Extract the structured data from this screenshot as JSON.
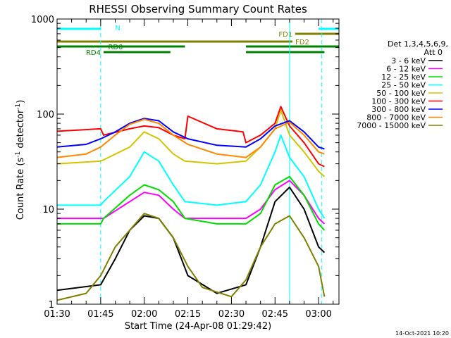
{
  "chart_data": {
    "type": "line",
    "title": "RHESSI Observing Summary Count Rates",
    "xlabel": "Start Time (24-Apr-08 01:29:42)",
    "ylabel_main": "Count Rate (s",
    "ylabel_sup1": "-1",
    "ylabel_mid": " detector",
    "ylabel_sup2": "-1",
    "ylabel_end": ")",
    "footer": "14-Oct-2021 10:20",
    "y_scale": "log",
    "ylim": [
      1,
      1000
    ],
    "xlim": [
      "01:30",
      "03:07"
    ],
    "x_ticks": [
      "01:30",
      "01:45",
      "02:00",
      "02:15",
      "02:30",
      "02:45",
      "03:00"
    ],
    "y_ticks": [
      "1",
      "10",
      "100",
      "1000"
    ],
    "legend": {
      "placement": "right",
      "header1": "Det 1,3,4,5,6,9,",
      "header2": "Att 0",
      "entries": [
        {
          "label": "3 - 6 keV",
          "color": "#000000"
        },
        {
          "label": "6 - 12 keV",
          "color": "#ff00ff"
        },
        {
          "label": "12 - 25 keV",
          "color": "#00dd00"
        },
        {
          "label": "25 - 50 keV",
          "color": "#00ffff"
        },
        {
          "label": "50 - 100 keV",
          "color": "#d4c400"
        },
        {
          "label": "100 - 300 keV",
          "color": "#ff0000"
        },
        {
          "label": "300 - 800 keV",
          "color": "#0000ff"
        },
        {
          "label": "800 - 7000 keV",
          "color": "#ff8800"
        },
        {
          "label": "7000 - 15000 keV",
          "color": "#808000"
        }
      ]
    },
    "flags": [
      {
        "label": "N",
        "color": "#00ffff",
        "spans": [
          [
            "01:30",
            "01:45"
          ],
          [
            "03:00",
            "03:07"
          ]
        ]
      },
      {
        "label": "FD1",
        "color": "#808000",
        "spans": [
          [
            "02:52",
            "03:07"
          ]
        ]
      },
      {
        "label": "FD2",
        "color": "#808000",
        "spans": [
          [
            "01:30",
            "02:51"
          ]
        ]
      },
      {
        "label": "RD0",
        "color": "#008000",
        "spans": [
          [
            "01:30",
            "02:14"
          ],
          [
            "02:35",
            "03:07"
          ]
        ]
      },
      {
        "label": "RD4",
        "color": "#008000",
        "spans": [
          [
            "01:46",
            "02:09"
          ],
          [
            "02:35",
            "03:02"
          ]
        ]
      }
    ],
    "vlines": [
      {
        "time": "01:45",
        "style": "dashed",
        "color": "#00ffff"
      },
      {
        "time": "02:50",
        "style": "solid",
        "color": "#00ffff"
      },
      {
        "time": "03:01",
        "style": "dashed",
        "color": "#00ffff"
      }
    ],
    "series": [
      {
        "name": "3 - 6 keV",
        "color": "#000000",
        "points": [
          [
            "01:30",
            1.4
          ],
          [
            "01:45",
            1.6
          ],
          [
            "01:50",
            3
          ],
          [
            "01:55",
            6
          ],
          [
            "02:00",
            8.5
          ],
          [
            "02:05",
            8
          ],
          [
            "02:10",
            5
          ],
          [
            "02:15",
            2
          ],
          [
            "02:25",
            1.3
          ],
          [
            "02:35",
            1.6
          ],
          [
            "02:40",
            4
          ],
          [
            "02:45",
            12
          ],
          [
            "02:50",
            17
          ],
          [
            "02:55",
            10
          ],
          [
            "03:00",
            4
          ],
          [
            "03:02",
            3.5
          ]
        ]
      },
      {
        "name": "6 - 12 keV",
        "color": "#ff00ff",
        "points": [
          [
            "01:30",
            8
          ],
          [
            "01:45",
            8
          ],
          [
            "01:46",
            8
          ],
          [
            "01:55",
            12
          ],
          [
            "02:00",
            15
          ],
          [
            "02:05",
            14
          ],
          [
            "02:10",
            10
          ],
          [
            "02:14",
            8
          ],
          [
            "02:25",
            8
          ],
          [
            "02:35",
            8
          ],
          [
            "02:40",
            10
          ],
          [
            "02:45",
            16
          ],
          [
            "02:50",
            20
          ],
          [
            "02:55",
            14
          ],
          [
            "03:00",
            8
          ],
          [
            "03:02",
            7
          ]
        ]
      },
      {
        "name": "12 - 25 keV",
        "color": "#00dd00",
        "points": [
          [
            "01:30",
            7
          ],
          [
            "01:45",
            7
          ],
          [
            "01:46",
            8
          ],
          [
            "01:55",
            14
          ],
          [
            "02:00",
            18
          ],
          [
            "02:05",
            16
          ],
          [
            "02:10",
            12
          ],
          [
            "02:14",
            8
          ],
          [
            "02:25",
            7
          ],
          [
            "02:35",
            7
          ],
          [
            "02:40",
            9
          ],
          [
            "02:45",
            18
          ],
          [
            "02:50",
            22
          ],
          [
            "02:55",
            14
          ],
          [
            "03:00",
            7
          ],
          [
            "03:02",
            6
          ]
        ]
      },
      {
        "name": "25 - 50 keV",
        "color": "#00ffff",
        "points": [
          [
            "01:30",
            11
          ],
          [
            "01:45",
            11
          ],
          [
            "01:46",
            12
          ],
          [
            "01:55",
            22
          ],
          [
            "02:00",
            40
          ],
          [
            "02:05",
            32
          ],
          [
            "02:10",
            18
          ],
          [
            "02:14",
            12
          ],
          [
            "02:25",
            11
          ],
          [
            "02:35",
            12
          ],
          [
            "02:40",
            18
          ],
          [
            "02:45",
            40
          ],
          [
            "02:47",
            60
          ],
          [
            "02:50",
            35
          ],
          [
            "02:55",
            22
          ],
          [
            "03:00",
            10
          ],
          [
            "03:02",
            8
          ]
        ]
      },
      {
        "name": "50 - 100 keV",
        "color": "#d4c400",
        "points": [
          [
            "01:30",
            30
          ],
          [
            "01:45",
            32
          ],
          [
            "01:46",
            33
          ],
          [
            "01:55",
            45
          ],
          [
            "02:00",
            65
          ],
          [
            "02:05",
            55
          ],
          [
            "02:10",
            38
          ],
          [
            "02:14",
            32
          ],
          [
            "02:25",
            30
          ],
          [
            "02:35",
            32
          ],
          [
            "02:40",
            45
          ],
          [
            "02:45",
            70
          ],
          [
            "02:47",
            110
          ],
          [
            "02:50",
            60
          ],
          [
            "02:55",
            40
          ],
          [
            "03:00",
            25
          ],
          [
            "03:02",
            22
          ]
        ]
      },
      {
        "name": "100 - 300 keV",
        "color": "#ff0000",
        "points": [
          [
            "01:30",
            66
          ],
          [
            "01:45",
            70
          ],
          [
            "01:46",
            60
          ],
          [
            "01:55",
            70
          ],
          [
            "02:00",
            75
          ],
          [
            "02:05",
            72
          ],
          [
            "02:10",
            60
          ],
          [
            "02:14",
            55
          ],
          [
            "02:15",
            95
          ],
          [
            "02:25",
            70
          ],
          [
            "02:34",
            65
          ],
          [
            "02:35",
            50
          ],
          [
            "02:40",
            60
          ],
          [
            "02:45",
            80
          ],
          [
            "02:47",
            120
          ],
          [
            "02:50",
            75
          ],
          [
            "02:55",
            50
          ],
          [
            "03:00",
            30
          ],
          [
            "03:02",
            28
          ]
        ]
      },
      {
        "name": "300 - 800 keV",
        "color": "#0000ff",
        "points": [
          [
            "01:30",
            45
          ],
          [
            "01:40",
            48
          ],
          [
            "01:45",
            55
          ],
          [
            "01:50",
            65
          ],
          [
            "01:55",
            80
          ],
          [
            "02:00",
            90
          ],
          [
            "02:05",
            85
          ],
          [
            "02:10",
            65
          ],
          [
            "02:15",
            55
          ],
          [
            "02:25",
            47
          ],
          [
            "02:35",
            45
          ],
          [
            "02:40",
            55
          ],
          [
            "02:45",
            75
          ],
          [
            "02:50",
            85
          ],
          [
            "02:55",
            65
          ],
          [
            "03:00",
            45
          ],
          [
            "03:02",
            43
          ]
        ]
      },
      {
        "name": "800 - 7000 keV",
        "color": "#ff8800",
        "points": [
          [
            "01:30",
            35
          ],
          [
            "01:40",
            38
          ],
          [
            "01:45",
            45
          ],
          [
            "01:50",
            60
          ],
          [
            "01:55",
            78
          ],
          [
            "02:00",
            88
          ],
          [
            "02:05",
            80
          ],
          [
            "02:10",
            60
          ],
          [
            "02:15",
            48
          ],
          [
            "02:25",
            38
          ],
          [
            "02:35",
            35
          ],
          [
            "02:40",
            45
          ],
          [
            "02:45",
            70
          ],
          [
            "02:50",
            82
          ],
          [
            "02:55",
            60
          ],
          [
            "03:00",
            40
          ],
          [
            "03:02",
            38
          ]
        ]
      },
      {
        "name": "7000 - 15000 keV",
        "color": "#808000",
        "points": [
          [
            "01:30",
            1.1
          ],
          [
            "01:40",
            1.3
          ],
          [
            "01:45",
            2
          ],
          [
            "01:50",
            4
          ],
          [
            "01:55",
            6
          ],
          [
            "02:00",
            9
          ],
          [
            "02:05",
            8
          ],
          [
            "02:10",
            5
          ],
          [
            "02:15",
            2.5
          ],
          [
            "02:20",
            1.5
          ],
          [
            "02:30",
            1.2
          ],
          [
            "02:35",
            1.8
          ],
          [
            "02:40",
            4
          ],
          [
            "02:45",
            7
          ],
          [
            "02:50",
            8.5
          ],
          [
            "02:55",
            5
          ],
          [
            "03:00",
            2.5
          ],
          [
            "03:02",
            1.2
          ]
        ]
      }
    ]
  }
}
